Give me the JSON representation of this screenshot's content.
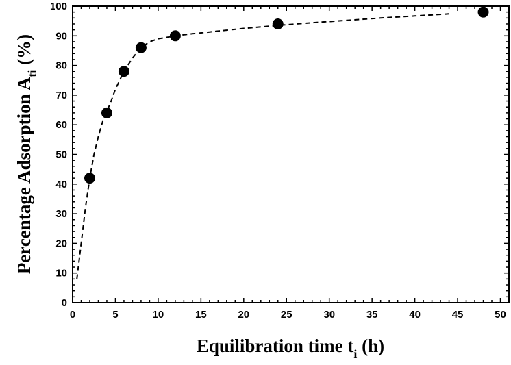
{
  "chart_data": {
    "type": "scatter",
    "title": "",
    "xlabel": {
      "main": "Equilibration time t",
      "sub": "i",
      "unit": " (h)"
    },
    "ylabel": {
      "main": "Percentage Adsorption A",
      "sub": "ti",
      "unit": " (%)"
    },
    "xlim": [
      0,
      51
    ],
    "ylim": [
      0,
      100
    ],
    "x_ticks": [
      0,
      5,
      10,
      15,
      20,
      25,
      30,
      35,
      40,
      45,
      50
    ],
    "y_ticks": [
      0,
      10,
      20,
      30,
      40,
      50,
      60,
      70,
      80,
      90,
      100
    ],
    "grid": false,
    "legend": "none",
    "points": {
      "x": [
        2,
        4,
        6,
        8,
        12,
        24,
        48
      ],
      "y": [
        42,
        64,
        78,
        86,
        90,
        94,
        98
      ]
    },
    "fit_curve": {
      "style": "dashed",
      "x": [
        0.5,
        1,
        1.5,
        2,
        2.5,
        3,
        3.5,
        4,
        4.5,
        5,
        5.5,
        6,
        7,
        8,
        9,
        10,
        11,
        12,
        14,
        16,
        18,
        20,
        24,
        28,
        32,
        36,
        40,
        44
      ],
      "y": [
        8,
        20,
        32,
        42,
        50,
        56,
        61,
        64.5,
        68,
        72,
        75,
        78,
        82.5,
        86,
        88,
        89,
        89.5,
        90,
        90.7,
        91.3,
        91.9,
        92.5,
        93.5,
        94.4,
        95.2,
        96,
        96.7,
        97.4
      ]
    },
    "marker_color": "#000000",
    "line_color": "#000000"
  }
}
